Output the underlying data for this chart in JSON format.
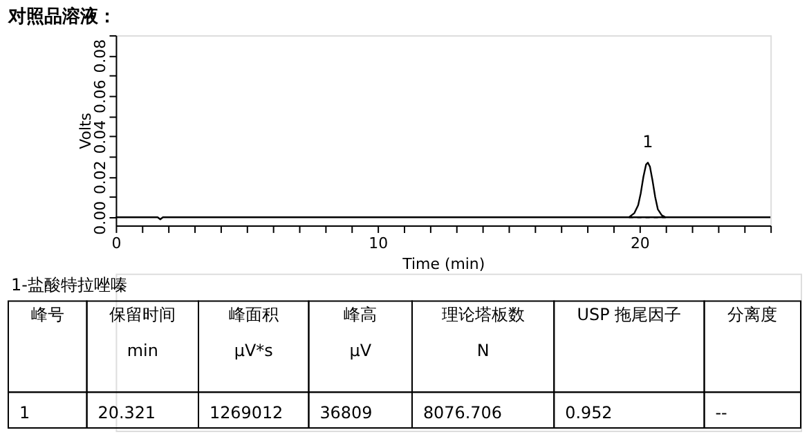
{
  "chart_data": {
    "type": "line",
    "title": "对照品溶液：",
    "xlabel": "Time (min)",
    "ylabel": "Volts",
    "series": [
      {
        "color": "#000000",
        "x": [
          0,
          1.6,
          1.7,
          1.8,
          25
        ],
        "values": [
          0,
          0,
          -0.001,
          0,
          0
        ]
      },
      {
        "color": "#000000",
        "x": [
          19.6,
          19.8,
          19.95,
          20.05,
          20.15,
          20.25,
          20.32,
          20.4,
          20.5,
          20.6,
          20.7,
          20.85,
          21.0
        ],
        "values": [
          0,
          0.002,
          0.006,
          0.012,
          0.02,
          0.026,
          0.027,
          0.025,
          0.018,
          0.01,
          0.004,
          0.001,
          0
        ]
      },
      {
        "color": "#000000",
        "x": [
          19.6,
          21.0
        ],
        "values": [
          0,
          0
        ],
        "line_style": "dashed"
      }
    ],
    "xlim": [
      0,
      25
    ],
    "xticks": [
      0,
      {
        "value": 1,
        "label": null
      },
      {
        "value": 2,
        "label": null
      },
      {
        "value": 3,
        "label": null
      },
      {
        "value": 4,
        "label": null
      },
      {
        "value": 5,
        "label": null
      },
      {
        "value": 6,
        "label": null
      },
      {
        "value": 7,
        "label": null
      },
      {
        "value": 8,
        "label": null
      },
      {
        "value": 9,
        "label": null
      },
      10,
      {
        "value": 11,
        "label": null
      },
      {
        "value": 12,
        "label": null
      },
      {
        "value": 13,
        "label": null
      },
      {
        "value": 14,
        "label": null
      },
      {
        "value": 15,
        "label": null
      },
      {
        "value": 16,
        "label": null
      },
      {
        "value": 17,
        "label": null
      },
      {
        "value": 18,
        "label": null
      },
      {
        "value": 19,
        "label": null
      },
      20,
      {
        "value": 21,
        "label": null
      },
      {
        "value": 22,
        "label": null
      },
      {
        "value": 23,
        "label": null
      },
      {
        "value": 24,
        "label": null
      },
      {
        "value": 25,
        "label": null
      }
    ],
    "ylim": [
      -0.004,
      0.09
    ],
    "yticks": [
      {
        "value": 0,
        "label": "0.00"
      },
      {
        "value": 0.01,
        "label": null
      },
      {
        "value": 0.02,
        "label": "0.02"
      },
      {
        "value": 0.03,
        "label": null
      },
      {
        "value": 0.04,
        "label": "0.04"
      },
      {
        "value": 0.05,
        "label": null
      },
      {
        "value": 0.06,
        "label": "0.06"
      },
      {
        "value": 0.07,
        "label": null
      },
      {
        "value": 0.08,
        "label": "0.08"
      },
      {
        "value": 0.09,
        "label": null
      }
    ],
    "grid": false,
    "marker": "none",
    "annotations": [
      {
        "text": "1",
        "x": 20.32,
        "y": 0.027
      },
      "1-盐酸特拉唑嗪",
      "峰号",
      "保留时间\nmin",
      "峰面积\nµV*s",
      "峰高\nµV",
      "理论塔板数\nN",
      "USP 拖尾因子",
      "分离度",
      "1",
      "20.321",
      "1269012",
      "36809",
      "8076.706",
      "0.952",
      "--"
    ]
  }
}
